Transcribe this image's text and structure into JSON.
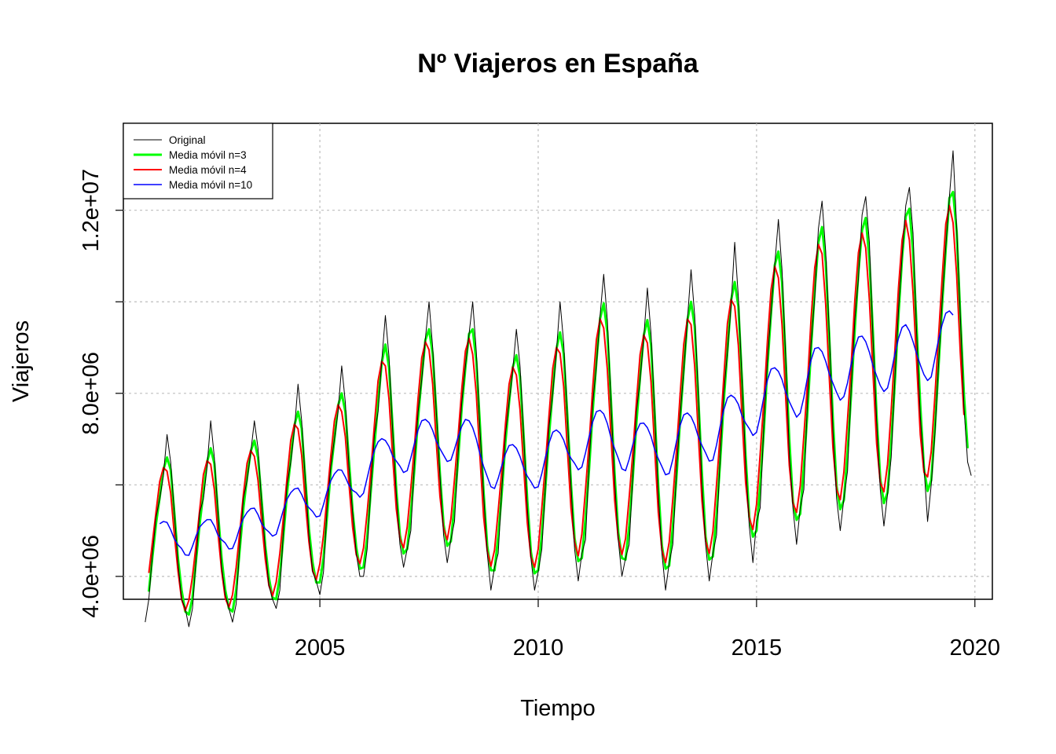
{
  "chart_data": {
    "type": "line",
    "title": "Nº Viajeros en España",
    "xlabel": "Tiempo",
    "ylabel": "Viajeros",
    "xlim": [
      2000.5,
      2020.4
    ],
    "ylim": [
      3500000,
      13900000
    ],
    "x_ticks": [
      {
        "value": 2005,
        "label": "2005"
      },
      {
        "value": 2010,
        "label": "2010"
      },
      {
        "value": 2015,
        "label": "2015"
      },
      {
        "value": 2020,
        "label": "2020"
      }
    ],
    "y_ticks": [
      {
        "value": 4000000,
        "label": "4.0e+06"
      },
      {
        "value": 6000000,
        "label": ""
      },
      {
        "value": 8000000,
        "label": "8.0e+06"
      },
      {
        "value": 10000000,
        "label": ""
      },
      {
        "value": 12000000,
        "label": "1.2e+07"
      }
    ],
    "grid": true,
    "legend_position": "top-left",
    "series": [
      {
        "name": "Original",
        "color": "#000000",
        "line_width": 1,
        "start": 2001.0,
        "step": 0.0833333,
        "smooth_window": 1
      },
      {
        "name": "Media móvil n=3",
        "color": "#00ff00",
        "line_width": 3,
        "start": 2001.0,
        "step": 0.0833333,
        "smooth_window": 3
      },
      {
        "name": "Media móvil n=4",
        "color": "#ff0000",
        "line_width": 2,
        "start": 2001.0,
        "step": 0.0833333,
        "smooth_window": 4
      },
      {
        "name": "Media móvil n=10",
        "color": "#0000ff",
        "line_width": 1.5,
        "start": 2001.0,
        "step": 0.0833333,
        "smooth_window": 10
      }
    ],
    "original_by_year": [
      {
        "year": 2001,
        "values": [
          3000000,
          3500000,
          4500000,
          5300000,
          5700000,
          6200000,
          7100000,
          6500000,
          5400000,
          4300000,
          3500000,
          3300000
        ]
      },
      {
        "year": 2002,
        "values": [
          2900000,
          3300000,
          4400000,
          5400000,
          5700000,
          6400000,
          7400000,
          6600000,
          5400000,
          4200000,
          3600000,
          3300000
        ]
      },
      {
        "year": 2003,
        "values": [
          3000000,
          3400000,
          4700000,
          5700000,
          6100000,
          6700000,
          7400000,
          6800000,
          5600000,
          4600000,
          3800000,
          3500000
        ]
      },
      {
        "year": 2004,
        "values": [
          3300000,
          3700000,
          5000000,
          6000000,
          6500000,
          7200000,
          8200000,
          7400000,
          6100000,
          4900000,
          4100000,
          3900000
        ]
      },
      {
        "year": 2005,
        "values": [
          3600000,
          4100000,
          5500000,
          6400000,
          7000000,
          7600000,
          8600000,
          7800000,
          6400000,
          5400000,
          4500000,
          4000000
        ]
      },
      {
        "year": 2006,
        "values": [
          4000000,
          4600000,
          5900000,
          7100000,
          7600000,
          8700000,
          9700000,
          8800000,
          7200000,
          5800000,
          4700000,
          4200000
        ]
      },
      {
        "year": 2007,
        "values": [
          4600000,
          5000000,
          6500000,
          7600000,
          8300000,
          9200000,
          10000000,
          9000000,
          7600000,
          6200000,
          4900000,
          4300000
        ]
      },
      {
        "year": 2008,
        "values": [
          4800000,
          5200000,
          6700000,
          7800000,
          8600000,
          9300000,
          10000000,
          8900000,
          7200000,
          5800000,
          4500000,
          3700000
        ]
      },
      {
        "year": 2009,
        "values": [
          4200000,
          4500000,
          5900000,
          7100000,
          7800000,
          8500000,
          9400000,
          8600000,
          7100000,
          5500000,
          4400000,
          3700000
        ]
      },
      {
        "year": 2010,
        "values": [
          4100000,
          4600000,
          6000000,
          7300000,
          8000000,
          8900000,
          10000000,
          9100000,
          7500000,
          6000000,
          4600000,
          3900000
        ]
      },
      {
        "year": 2011,
        "values": [
          4500000,
          4800000,
          6500000,
          7800000,
          8600000,
          9700000,
          10600000,
          9600000,
          7800000,
          6100000,
          4800000,
          4000000
        ]
      },
      {
        "year": 2012,
        "values": [
          4400000,
          4700000,
          6200000,
          7600000,
          8300000,
          9200000,
          10300000,
          9300000,
          7600000,
          5800000,
          4500000,
          3700000
        ]
      },
      {
        "year": 2013,
        "values": [
          4300000,
          4700000,
          6300000,
          7500000,
          8500000,
          9600000,
          10700000,
          9700000,
          8000000,
          6000000,
          4700000,
          3900000
        ]
      },
      {
        "year": 2014,
        "values": [
          4500000,
          4900000,
          6600000,
          8000000,
          8900000,
          9900000,
          11300000,
          10100000,
          8300000,
          6500000,
          5100000,
          4300000
        ]
      },
      {
        "year": 2015,
        "values": [
          5200000,
          5500000,
          7300000,
          8700000,
          9800000,
          10800000,
          11800000,
          10700000,
          8800000,
          6700000,
          5500000,
          4700000
        ]
      },
      {
        "year": 2016,
        "values": [
          5500000,
          5900000,
          7800000,
          9100000,
          10100000,
          11600000,
          12200000,
          11100000,
          9300000,
          7200000,
          5700000,
          5000000
        ]
      },
      {
        "year": 2017,
        "values": [
          5700000,
          6300000,
          8100000,
          9600000,
          10500000,
          11900000,
          12300000,
          11300000,
          9200000,
          7400000,
          5900000,
          5100000
        ]
      },
      {
        "year": 2018,
        "values": [
          5800000,
          6600000,
          8300000,
          9800000,
          11000000,
          12100000,
          12500000,
          11500000,
          9300000,
          7500000,
          6400000,
          5200000
        ]
      },
      {
        "year": 2019,
        "values": [
          6000000,
          7100000,
          8600000,
          10000000,
          11200000,
          12300000,
          13300000,
          11600000,
          9700000,
          7700000,
          6500000,
          6200000
        ]
      }
    ]
  }
}
